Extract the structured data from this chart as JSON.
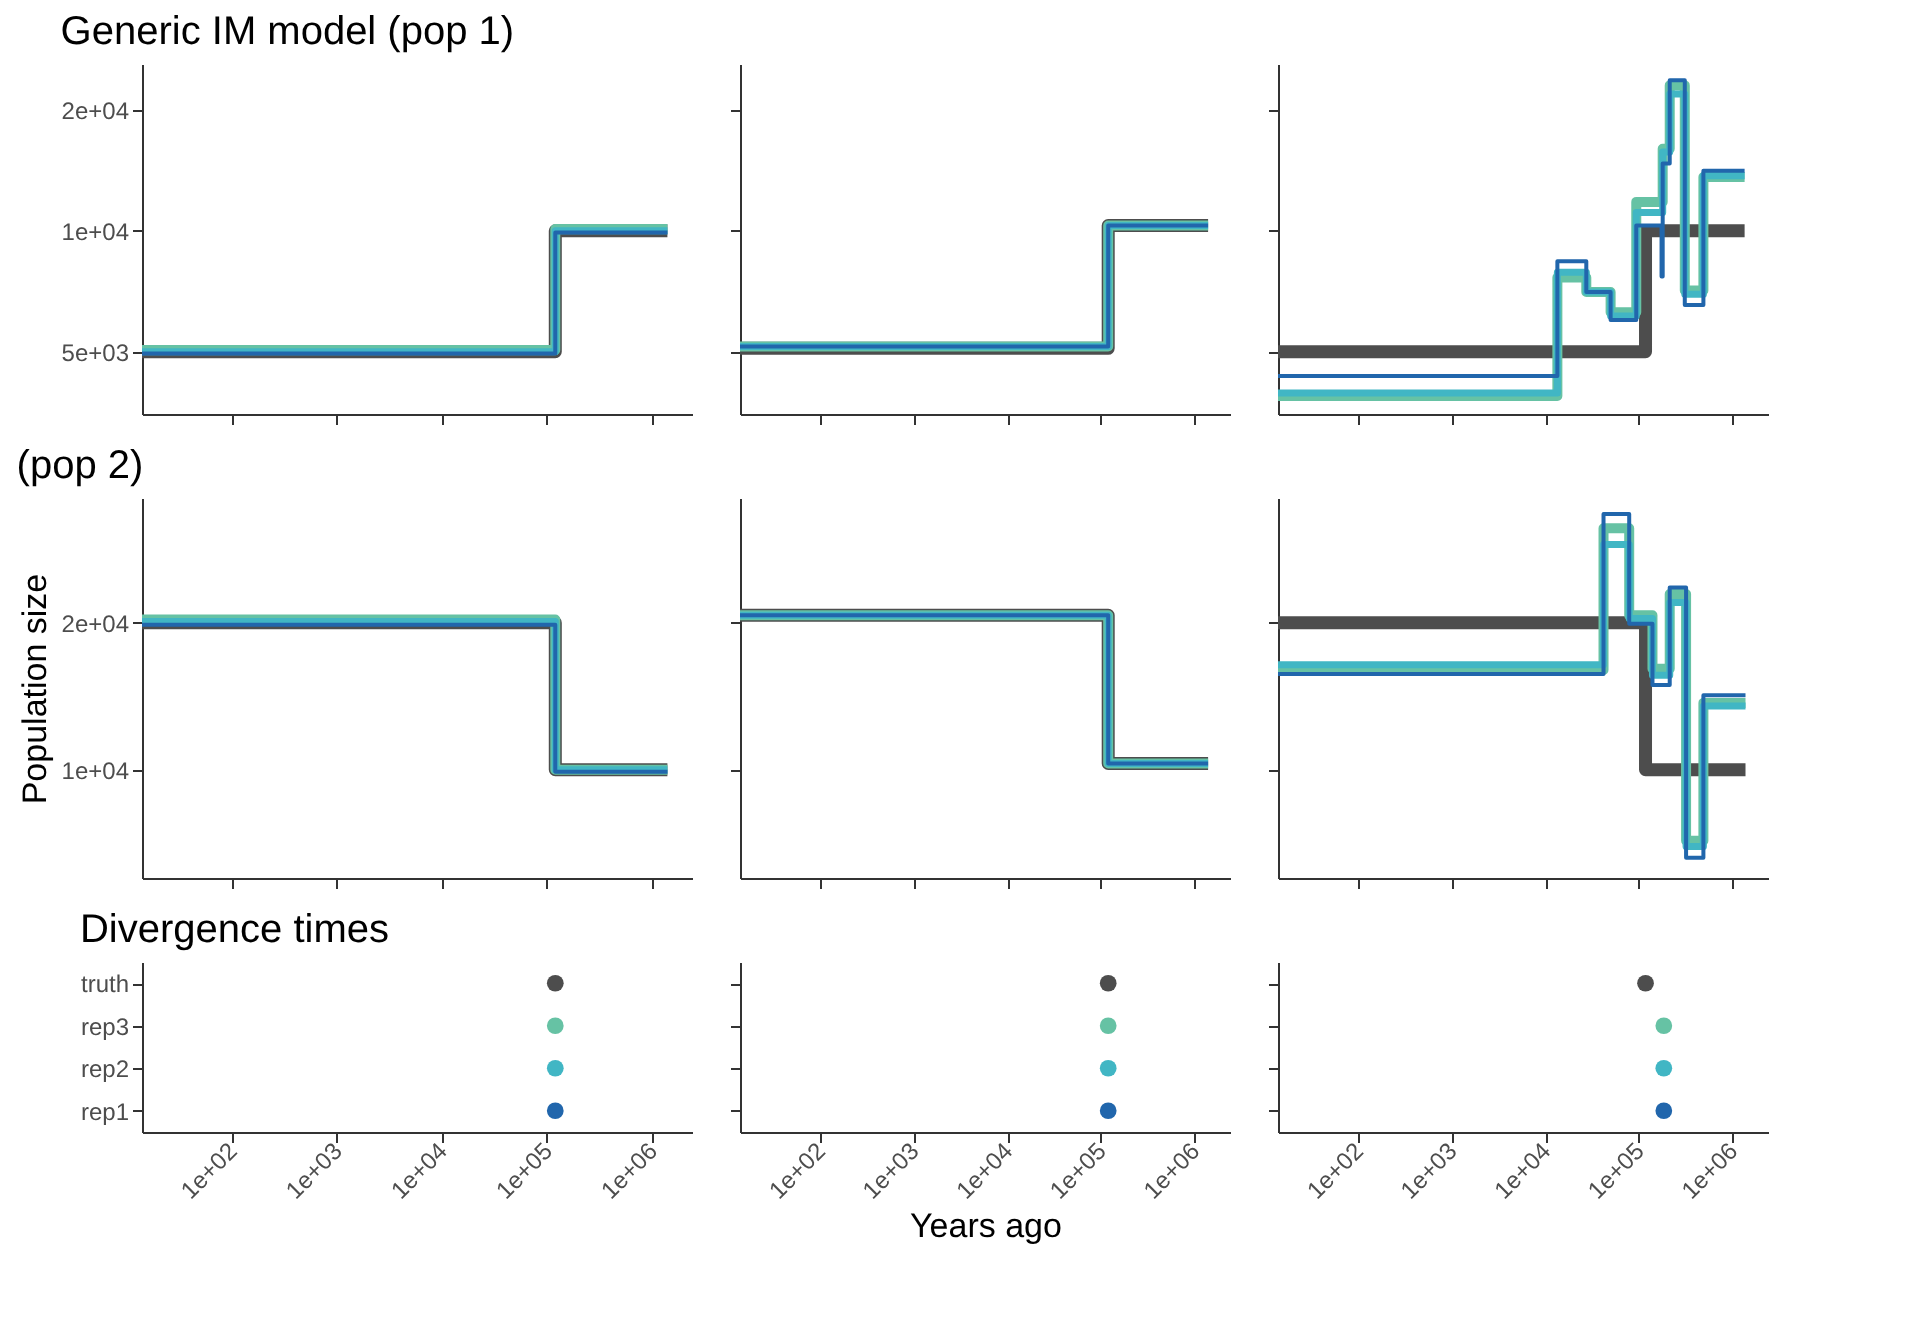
{
  "chart_data": [
    {
      "type": "step",
      "title": "Generic IM model (pop 1)",
      "log": "xy",
      "tick_labels": "y",
      "xlim": [
        14,
        2400000
      ],
      "xticks": [
        {
          "value": 100,
          "label": null
        },
        {
          "value": 1000,
          "label": null
        },
        {
          "value": 10000,
          "label": null
        },
        {
          "value": 100000,
          "label": null
        },
        {
          "value": 1000000,
          "label": null
        }
      ],
      "ylim": [
        3500,
        26000
      ],
      "yticks": [
        {
          "value": 5000,
          "label": "5e+03"
        },
        {
          "value": 10000,
          "label": "1e+04"
        },
        {
          "value": 20000,
          "label": "2e+04"
        }
      ],
      "series": [
        {
          "color": "#4d4d4d",
          "x": [
            14,
            120000,
            1400000
          ],
          "values": [
            5000,
            10000,
            10000
          ]
        },
        {
          "color": "#66c2a4",
          "x": [
            14,
            120000,
            1400000
          ],
          "values": [
            5050,
            10100,
            10100
          ]
        },
        {
          "color": "#41b6c4",
          "x": [
            14,
            120000,
            1400000
          ],
          "values": [
            5000,
            10000,
            10000
          ]
        },
        {
          "color": "#2166ac",
          "x": [
            14,
            120000,
            1400000
          ],
          "values": [
            4950,
            9900,
            9900
          ]
        }
      ]
    },
    {
      "type": "step",
      "log": "xy",
      "tick_labels": false,
      "xlim": [
        14,
        2400000
      ],
      "xticks": [
        {
          "value": 100,
          "label": null
        },
        {
          "value": 1000,
          "label": null
        },
        {
          "value": 10000,
          "label": null
        },
        {
          "value": 100000,
          "label": null
        },
        {
          "value": 1000000,
          "label": null
        }
      ],
      "ylim": [
        3500,
        26000
      ],
      "yticks": [
        {
          "value": 5000,
          "label": null
        },
        {
          "value": 10000,
          "label": null
        },
        {
          "value": 20000,
          "label": null
        }
      ],
      "series": [
        {
          "color": "#4d4d4d",
          "x": [
            14,
            120000,
            1400000
          ],
          "values": [
            5100,
            10300,
            10300
          ]
        },
        {
          "color": "#66c2a4",
          "x": [
            14,
            120000,
            1400000
          ],
          "values": [
            5150,
            10300,
            10300
          ]
        },
        {
          "color": "#41b6c4",
          "x": [
            14,
            120000,
            1400000
          ],
          "values": [
            5150,
            10300,
            10300
          ]
        },
        {
          "color": "#2166ac",
          "x": [
            14,
            120000,
            1400000
          ],
          "values": [
            5150,
            10300,
            10300
          ]
        }
      ]
    },
    {
      "type": "step",
      "log": "xy",
      "tick_labels": false,
      "xlim": [
        14,
        2400000
      ],
      "xticks": [
        {
          "value": 100,
          "label": null
        },
        {
          "value": 1000,
          "label": null
        },
        {
          "value": 10000,
          "label": null
        },
        {
          "value": 100000,
          "label": null
        },
        {
          "value": 1000000,
          "label": null
        }
      ],
      "ylim": [
        3500,
        26000
      ],
      "yticks": [
        {
          "value": 5000,
          "label": null
        },
        {
          "value": 10000,
          "label": null
        },
        {
          "value": 20000,
          "label": null
        }
      ],
      "series": [
        {
          "color": "#4d4d4d",
          "x": [
            14,
            118000,
            1350000
          ],
          "values": [
            5000,
            10000,
            10000
          ]
        },
        {
          "color": "#66c2a4",
          "x": [
            14,
            13500,
            27500,
            50000,
            94000,
            180000,
            214000,
            310000,
            490000,
            1350000
          ],
          "values": [
            3880,
            7650,
            7040,
            6270,
            11800,
            16000,
            23000,
            7100,
            13600,
            13600
          ]
        },
        {
          "color": "#41b6c4",
          "x": [
            14,
            13500,
            27500,
            50000,
            94000,
            180000,
            214000,
            310000,
            490000,
            1350000
          ],
          "values": [
            3950,
            7880,
            7040,
            6140,
            11100,
            15700,
            21900,
            6950,
            13700,
            13700
          ]
        },
        {
          "color": "#2166ac",
          "x": [
            14,
            13500,
            27500,
            50000,
            94000,
            175000,
            180000,
            214000,
            310000,
            490000,
            1350000
          ],
          "values": [
            4350,
            8400,
            7040,
            6000,
            10300,
            7700,
            14700,
            23700,
            6540,
            14100,
            14100
          ]
        }
      ]
    },
    {
      "type": "step",
      "title": "(pop 2)",
      "ylabel": "Population size",
      "log": "xy",
      "tick_labels": "y",
      "xlim": [
        14,
        2400000
      ],
      "xticks": [
        {
          "value": 100,
          "label": null
        },
        {
          "value": 1000,
          "label": null
        },
        {
          "value": 10000,
          "label": null
        },
        {
          "value": 100000,
          "label": null
        },
        {
          "value": 1000000,
          "label": null
        }
      ],
      "ylim": [
        6000,
        36000
      ],
      "yticks": [
        {
          "value": 10000,
          "label": "1e+04"
        },
        {
          "value": 20000,
          "label": "2e+04"
        }
      ],
      "series": [
        {
          "color": "#4d4d4d",
          "x": [
            14,
            120000,
            1400000
          ],
          "values": [
            20000,
            10000,
            10000
          ]
        },
        {
          "color": "#66c2a4",
          "x": [
            14,
            120000,
            1400000
          ],
          "values": [
            20300,
            10000,
            10000
          ]
        },
        {
          "color": "#41b6c4",
          "x": [
            14,
            120000,
            1400000
          ],
          "values": [
            20100,
            10000,
            10000
          ]
        },
        {
          "color": "#2166ac",
          "x": [
            14,
            120000,
            1400000
          ],
          "values": [
            19800,
            9900,
            9900
          ]
        }
      ]
    },
    {
      "type": "step",
      "log": "xy",
      "tick_labels": false,
      "xlim": [
        14,
        2400000
      ],
      "xticks": [
        {
          "value": 100,
          "label": null
        },
        {
          "value": 1000,
          "label": null
        },
        {
          "value": 10000,
          "label": null
        },
        {
          "value": 100000,
          "label": null
        },
        {
          "value": 1000000,
          "label": null
        }
      ],
      "ylim": [
        6000,
        36000
      ],
      "yticks": [
        {
          "value": 10000,
          "label": null
        },
        {
          "value": 20000,
          "label": null
        }
      ],
      "series": [
        {
          "color": "#4d4d4d",
          "x": [
            14,
            120000,
            1400000
          ],
          "values": [
            20700,
            10300,
            10300
          ]
        },
        {
          "color": "#66c2a4",
          "x": [
            14,
            120000,
            1400000
          ],
          "values": [
            20700,
            10300,
            10300
          ]
        },
        {
          "color": "#41b6c4",
          "x": [
            14,
            120000,
            1400000
          ],
          "values": [
            20700,
            10300,
            10300
          ]
        },
        {
          "color": "#2166ac",
          "x": [
            14,
            120000,
            1400000
          ],
          "values": [
            20700,
            10300,
            10300
          ]
        }
      ]
    },
    {
      "type": "step",
      "log": "xy",
      "tick_labels": false,
      "xlim": [
        14,
        2400000
      ],
      "xticks": [
        {
          "value": 100,
          "label": null
        },
        {
          "value": 1000,
          "label": null
        },
        {
          "value": 10000,
          "label": null
        },
        {
          "value": 100000,
          "label": null
        },
        {
          "value": 1000000,
          "label": null
        }
      ],
      "ylim": [
        6000,
        36000
      ],
      "yticks": [
        {
          "value": 10000,
          "label": null
        },
        {
          "value": 20000,
          "label": null
        }
      ],
      "series": [
        {
          "color": "#4d4d4d",
          "x": [
            14,
            118000,
            1380000
          ],
          "values": [
            20000,
            10000,
            10000
          ]
        },
        {
          "color": "#66c2a4",
          "x": [
            14,
            42000,
            79000,
            140000,
            214000,
            320000,
            490000,
            1380000
          ],
          "values": [
            16000,
            31200,
            20700,
            16100,
            22900,
            7150,
            13700,
            13700
          ]
        },
        {
          "color": "#41b6c4",
          "x": [
            14,
            42000,
            79000,
            140000,
            214000,
            320000,
            490000,
            1380000
          ],
          "values": [
            16400,
            28900,
            20400,
            15600,
            22000,
            6960,
            13500,
            13500
          ]
        },
        {
          "color": "#2166ac",
          "x": [
            14,
            42000,
            79000,
            140000,
            214000,
            320000,
            490000,
            1380000
          ],
          "values": [
            15700,
            33400,
            19900,
            14900,
            23600,
            6600,
            14200,
            14200
          ]
        }
      ]
    },
    {
      "type": "scatter",
      "title": "Divergence times",
      "orientation": "horizontal",
      "log": "x",
      "xlim": [
        14,
        2400000
      ],
      "xticks": [
        {
          "value": 100,
          "label": "1e+02"
        },
        {
          "value": 1000,
          "label": "1e+03"
        },
        {
          "value": 10000,
          "label": "1e+04"
        },
        {
          "value": 100000,
          "label": "1e+05"
        },
        {
          "value": 1000000,
          "label": "1e+06"
        }
      ],
      "categories": [
        "truth",
        "rep3",
        "rep2",
        "rep1"
      ],
      "values": [
        120000,
        120000,
        120000,
        120000
      ],
      "colors": [
        "#4d4d4d",
        "#66c2a4",
        "#41b6c4",
        "#2166ac"
      ]
    },
    {
      "type": "scatter",
      "xlabel": "Years ago",
      "orientation": "horizontal",
      "log": "x",
      "tick_labels": "x",
      "xlim": [
        14,
        2400000
      ],
      "xticks": [
        {
          "value": 100,
          "label": "1e+02"
        },
        {
          "value": 1000,
          "label": "1e+03"
        },
        {
          "value": 10000,
          "label": "1e+04"
        },
        {
          "value": 100000,
          "label": "1e+05"
        },
        {
          "value": 1000000,
          "label": "1e+06"
        }
      ],
      "categories": [
        null,
        null,
        null,
        null
      ],
      "values": [
        120000,
        120000,
        120000,
        120000
      ],
      "colors": [
        "#4d4d4d",
        "#66c2a4",
        "#41b6c4",
        "#2166ac"
      ]
    },
    {
      "type": "scatter",
      "orientation": "horizontal",
      "log": "x",
      "tick_labels": "x",
      "xlim": [
        14,
        2400000
      ],
      "xticks": [
        {
          "value": 100,
          "label": "1e+02"
        },
        {
          "value": 1000,
          "label": "1e+03"
        },
        {
          "value": 10000,
          "label": "1e+04"
        },
        {
          "value": 100000,
          "label": "1e+05"
        },
        {
          "value": 1000000,
          "label": "1e+06"
        }
      ],
      "categories": [
        null,
        null,
        null,
        null
      ],
      "values": [
        118000,
        185000,
        185000,
        185000
      ],
      "colors": [
        "#4d4d4d",
        "#66c2a4",
        "#41b6c4",
        "#2166ac"
      ]
    }
  ]
}
